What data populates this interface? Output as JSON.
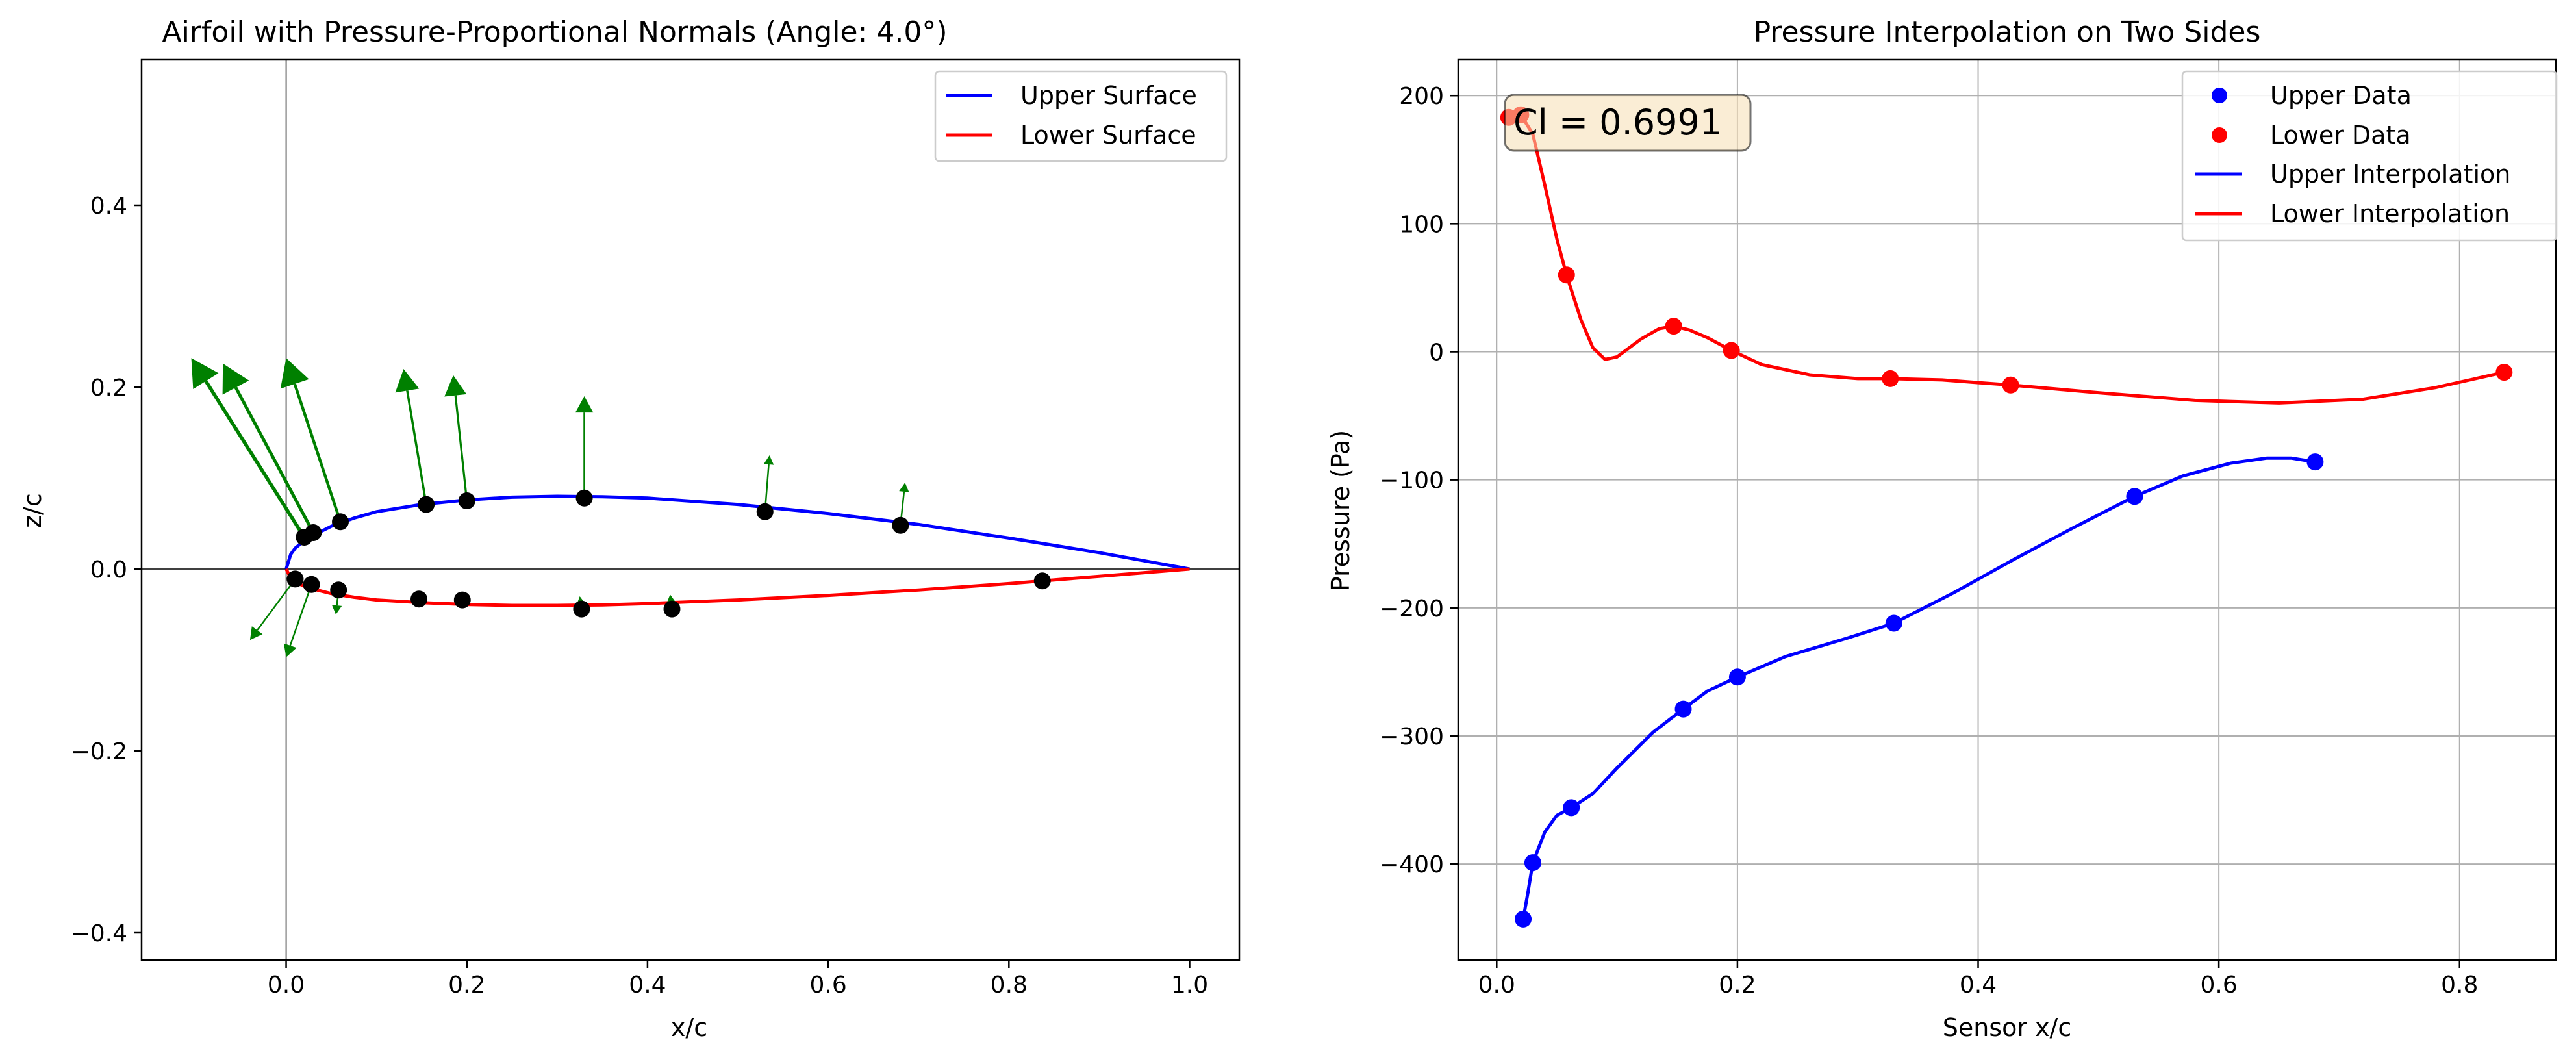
{
  "chart_data": [
    {
      "type": "line",
      "title": "Airfoil with Pressure-Proportional Normals (Angle: 4.0°)",
      "xlabel": "x/c",
      "ylabel": "z/c",
      "xlim": [
        -0.16,
        1.055
      ],
      "ylim": [
        -0.43,
        0.56
      ],
      "xticks": [
        0.0,
        0.2,
        0.4,
        0.6,
        0.8,
        1.0
      ],
      "xtick_labels": [
        "0.0",
        "0.2",
        "0.4",
        "0.6",
        "0.8",
        "1.0"
      ],
      "yticks": [
        -0.4,
        -0.2,
        0.0,
        0.2,
        0.4
      ],
      "ytick_labels": [
        "−0.4",
        "−0.2",
        "0.0",
        "0.2",
        "0.4"
      ],
      "grid": false,
      "legend_position": "top-right",
      "series": [
        {
          "name": "Upper Surface",
          "color": "#0000ff",
          "x": [
            0,
            0.005,
            0.01,
            0.02,
            0.03,
            0.05,
            0.075,
            0.1,
            0.15,
            0.2,
            0.25,
            0.3,
            0.35,
            0.4,
            0.5,
            0.6,
            0.7,
            0.8,
            0.9,
            1.0
          ],
          "y": [
            0,
            0.016,
            0.023,
            0.031,
            0.037,
            0.047,
            0.056,
            0.063,
            0.071,
            0.076,
            0.079,
            0.08,
            0.0795,
            0.078,
            0.071,
            0.061,
            0.049,
            0.034,
            0.018,
            0.0
          ]
        },
        {
          "name": "Lower Surface",
          "color": "#ff0000",
          "x": [
            0,
            0.005,
            0.01,
            0.02,
            0.03,
            0.05,
            0.075,
            0.1,
            0.15,
            0.2,
            0.25,
            0.3,
            0.35,
            0.4,
            0.5,
            0.6,
            0.7,
            0.8,
            0.9,
            1.0
          ],
          "y": [
            0,
            -0.01,
            -0.014,
            -0.019,
            -0.022,
            -0.027,
            -0.031,
            -0.034,
            -0.037,
            -0.039,
            -0.04,
            -0.04,
            -0.0395,
            -0.038,
            -0.034,
            -0.029,
            -0.023,
            -0.016,
            -0.008,
            0.0
          ]
        }
      ],
      "sensors": [
        {
          "x": 0.02,
          "y": 0.035
        },
        {
          "x": 0.03,
          "y": 0.04
        },
        {
          "x": 0.06,
          "y": 0.052
        },
        {
          "x": 0.155,
          "y": 0.071
        },
        {
          "x": 0.2,
          "y": 0.075
        },
        {
          "x": 0.33,
          "y": 0.078
        },
        {
          "x": 0.53,
          "y": 0.063
        },
        {
          "x": 0.68,
          "y": 0.048
        },
        {
          "x": 0.01,
          "y": -0.011
        },
        {
          "x": 0.028,
          "y": -0.017
        },
        {
          "x": 0.058,
          "y": -0.023
        },
        {
          "x": 0.147,
          "y": -0.033
        },
        {
          "x": 0.195,
          "y": -0.034
        },
        {
          "x": 0.327,
          "y": -0.044
        },
        {
          "x": 0.427,
          "y": -0.044
        },
        {
          "x": 0.837,
          "y": -0.013
        }
      ],
      "normals_color": "#008000",
      "normals": [
        {
          "x0": 0.02,
          "y0": 0.035,
          "x1": -0.105,
          "y1": 0.232
        },
        {
          "x0": 0.03,
          "y0": 0.04,
          "x1": -0.07,
          "y1": 0.226
        },
        {
          "x0": 0.06,
          "y0": 0.052,
          "x1": 0.0,
          "y1": 0.232
        },
        {
          "x0": 0.155,
          "y0": 0.071,
          "x1": 0.13,
          "y1": 0.22
        },
        {
          "x0": 0.2,
          "y0": 0.075,
          "x1": 0.185,
          "y1": 0.213
        },
        {
          "x0": 0.33,
          "y0": 0.078,
          "x1": 0.33,
          "y1": 0.19
        },
        {
          "x0": 0.53,
          "y0": 0.063,
          "x1": 0.535,
          "y1": 0.125
        },
        {
          "x0": 0.68,
          "y0": 0.048,
          "x1": 0.685,
          "y1": 0.095
        },
        {
          "x0": 0.01,
          "y0": -0.011,
          "x1": -0.04,
          "y1": -0.078
        },
        {
          "x0": 0.028,
          "y0": -0.017,
          "x1": 0.0,
          "y1": -0.097
        },
        {
          "x0": 0.058,
          "y0": -0.023,
          "x1": 0.055,
          "y1": -0.05
        },
        {
          "x0": 0.327,
          "y0": -0.044,
          "x1": 0.325,
          "y1": -0.03
        },
        {
          "x0": 0.427,
          "y0": -0.044,
          "x1": 0.425,
          "y1": -0.028
        }
      ]
    },
    {
      "type": "line",
      "title": "Pressure Interpolation on Two Sides",
      "xlabel": "Sensor x/c",
      "ylabel": "Pressure (Pa)",
      "xlim": [
        -0.032,
        0.88
      ],
      "ylim": [
        -475,
        228
      ],
      "xticks": [
        0.0,
        0.2,
        0.4,
        0.6,
        0.8
      ],
      "xtick_labels": [
        "0.0",
        "0.2",
        "0.4",
        "0.6",
        "0.8"
      ],
      "yticks": [
        -400,
        -300,
        -200,
        -100,
        0,
        100,
        200
      ],
      "ytick_labels": [
        "−400",
        "−300",
        "−200",
        "−100",
        "0",
        "100",
        "200"
      ],
      "grid": true,
      "legend_position": "top-right",
      "annotation": "Cl = 0.6991",
      "series": [
        {
          "name": "Upper Data",
          "color": "#0000ff",
          "marker": "circle",
          "x": [
            0.022,
            0.03,
            0.062,
            0.155,
            0.2,
            0.33,
            0.53,
            0.68
          ],
          "y": [
            -443,
            -399,
            -356,
            -279,
            -254,
            -212,
            -113,
            -86
          ]
        },
        {
          "name": "Lower Data",
          "color": "#ff0000",
          "marker": "circle",
          "x": [
            0.01,
            0.02,
            0.058,
            0.147,
            0.195,
            0.327,
            0.427,
            0.837
          ],
          "y": [
            183,
            185,
            60,
            20,
            1,
            -21,
            -26,
            -16
          ]
        },
        {
          "name": "Upper Interpolation",
          "color": "#0000ff",
          "x": [
            0.022,
            0.026,
            0.03,
            0.04,
            0.05,
            0.062,
            0.08,
            0.1,
            0.13,
            0.155,
            0.175,
            0.2,
            0.24,
            0.29,
            0.33,
            0.38,
            0.43,
            0.48,
            0.53,
            0.57,
            0.61,
            0.64,
            0.66,
            0.68
          ],
          "y": [
            -443,
            -422,
            -399,
            -375,
            -362,
            -356,
            -345,
            -325,
            -297,
            -279,
            -265,
            -254,
            -238,
            -224,
            -212,
            -188,
            -162,
            -137,
            -113,
            -97,
            -87,
            -83,
            -83,
            -86
          ]
        },
        {
          "name": "Lower Interpolation",
          "color": "#ff0000",
          "x": [
            0.01,
            0.015,
            0.02,
            0.03,
            0.04,
            0.05,
            0.058,
            0.07,
            0.08,
            0.09,
            0.1,
            0.11,
            0.12,
            0.135,
            0.147,
            0.16,
            0.175,
            0.195,
            0.22,
            0.26,
            0.3,
            0.327,
            0.37,
            0.427,
            0.5,
            0.58,
            0.65,
            0.72,
            0.78,
            0.837
          ],
          "y": [
            183,
            187,
            185,
            170,
            130,
            88,
            60,
            25,
            3,
            -6,
            -4,
            3,
            10,
            18,
            20,
            17,
            11,
            1,
            -10,
            -18,
            -21,
            -21,
            -22,
            -26,
            -32,
            -38,
            -40,
            -37,
            -28,
            -16
          ]
        }
      ]
    }
  ]
}
